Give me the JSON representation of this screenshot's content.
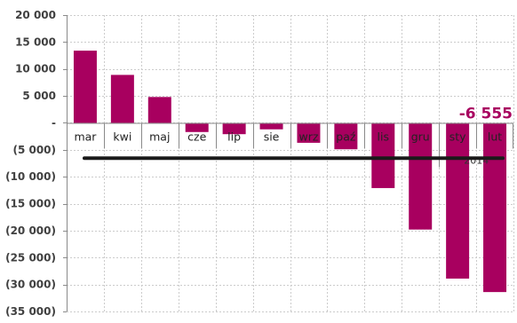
{
  "chart_data": {
    "type": "bar",
    "categories": [
      "mar",
      "kwi",
      "maj",
      "cze",
      "lip",
      "sie",
      "wrz",
      "paź",
      "lis",
      "gru",
      "sty",
      "lut"
    ],
    "values": [
      13400,
      8900,
      4800,
      -1700,
      -2100,
      -1200,
      -3700,
      -4900,
      -12100,
      -19800,
      -28900,
      -31400
    ],
    "year_label": "2014",
    "year_label_from_category": "sty",
    "ylim": [
      -35000,
      20000
    ],
    "yticks": [
      20000,
      15000,
      10000,
      5000,
      0,
      -5000,
      -10000,
      -15000,
      -20000,
      -25000,
      -30000,
      -35000
    ],
    "ytick_labels": [
      "20 000",
      "15 000",
      "10 000",
      "5 000",
      "-",
      "(5 000)",
      "(10 000)",
      "(15 000)",
      "(20 000)",
      "(25 000)",
      "(30 000)",
      "(35 000)"
    ],
    "reference_line": {
      "value": -6555,
      "label": "-6 555"
    },
    "grid": true,
    "legend": "none",
    "colors": {
      "bar": "#a8005f",
      "reference_line": "#1a1a1a",
      "annotation": "#a8005f",
      "grid": "#cccccc"
    }
  }
}
